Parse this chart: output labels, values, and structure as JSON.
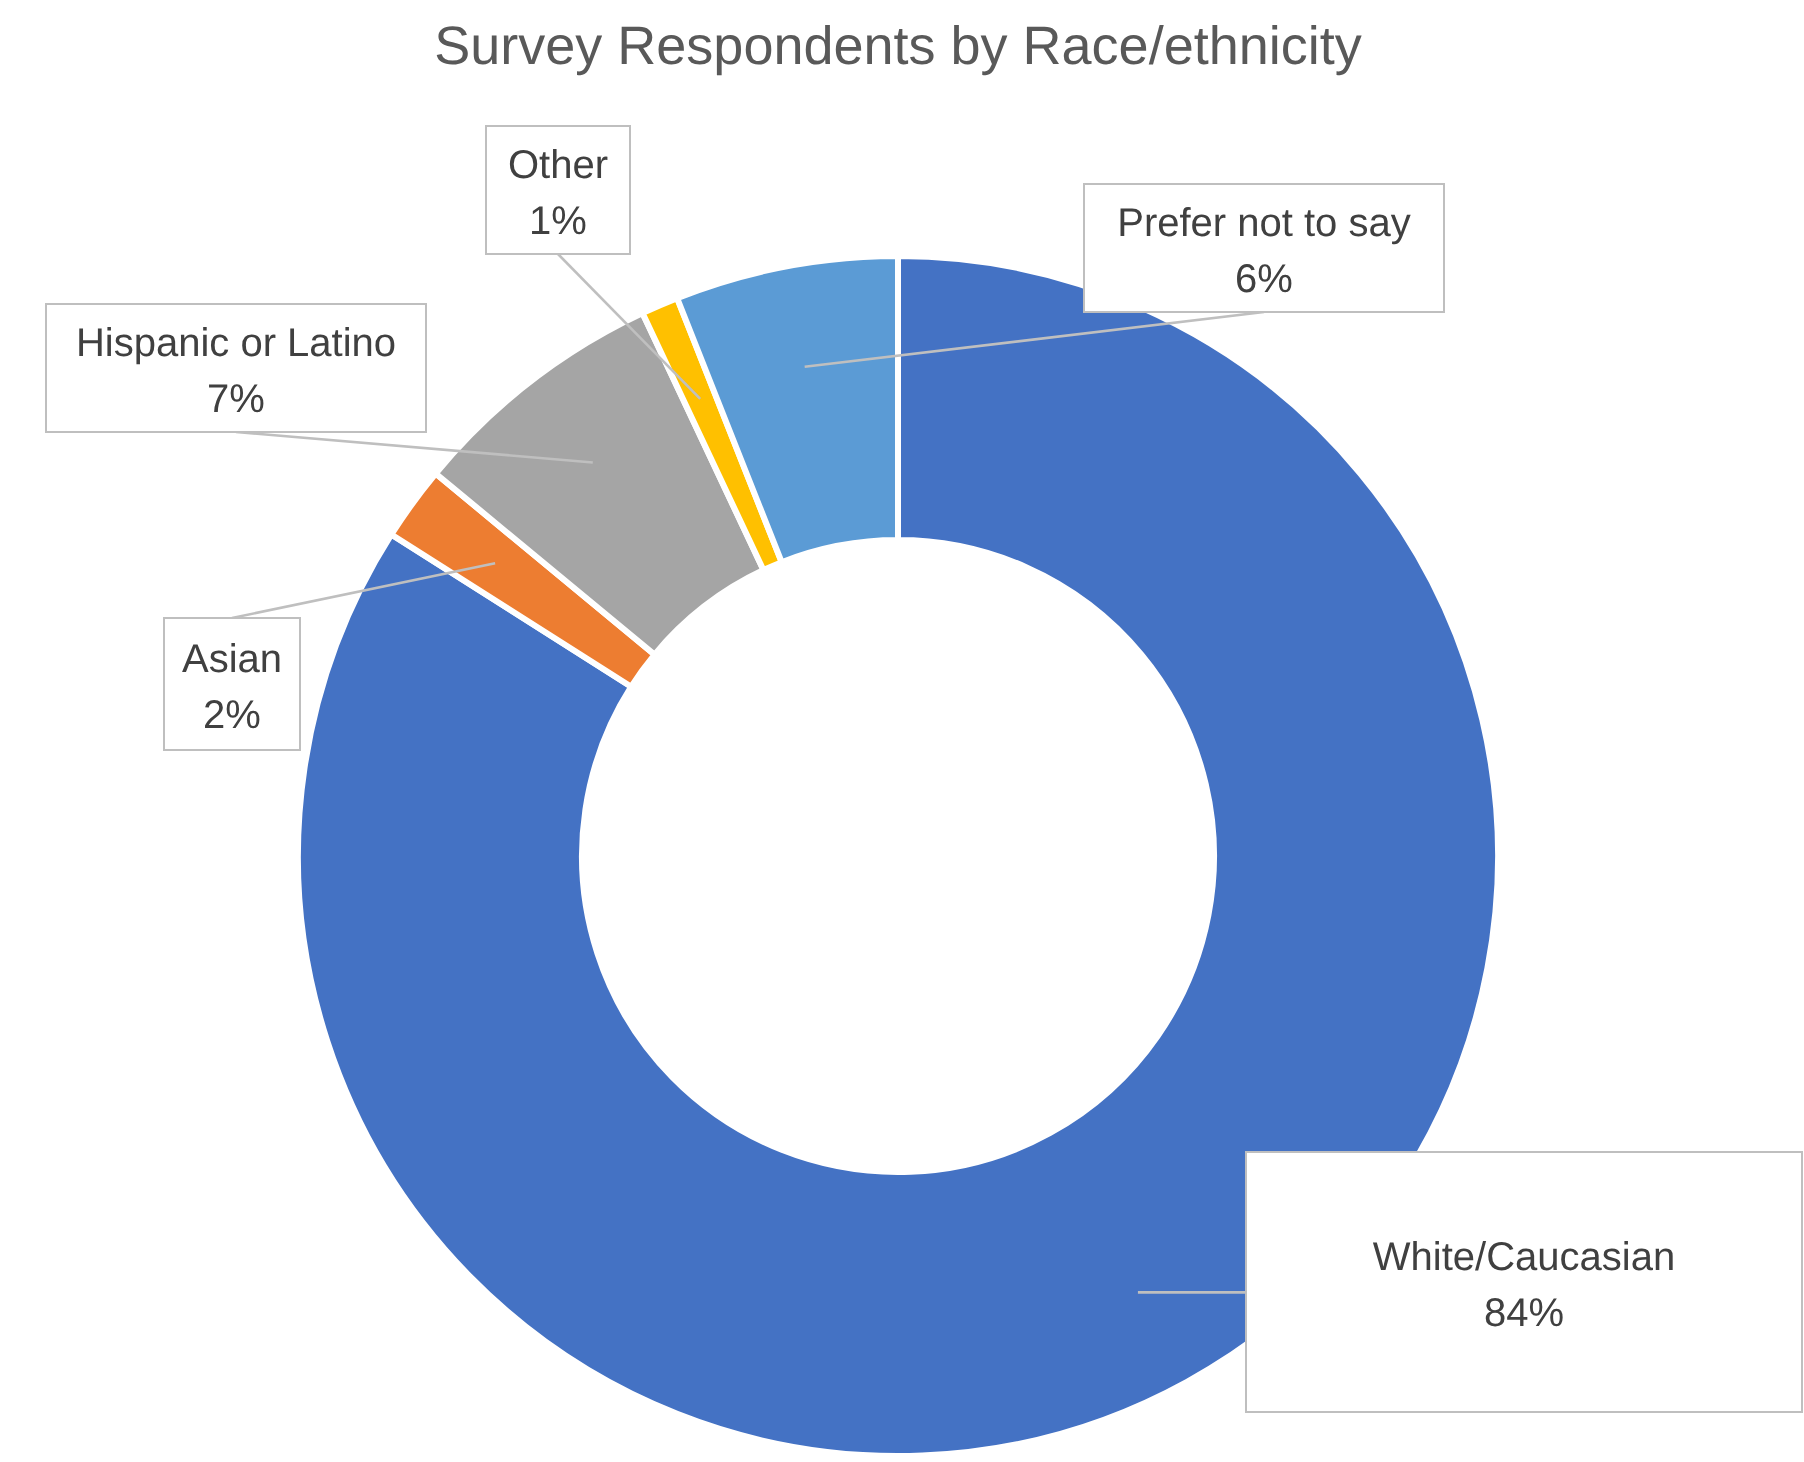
{
  "chart_data": {
    "type": "donut",
    "title": "Survey Respondents by Race/ethnicity",
    "categories": [
      "White/Caucasian",
      "Asian",
      "Hispanic or Latino",
      "Other",
      "Prefer not to say"
    ],
    "values": [
      84,
      2,
      7,
      1,
      6
    ],
    "value_labels": [
      "84%",
      "2%",
      "7%",
      "1%",
      "6%"
    ],
    "colors": [
      "#4472c4",
      "#ed7d31",
      "#a5a5a5",
      "#ffc000",
      "#5b9bd5"
    ]
  }
}
